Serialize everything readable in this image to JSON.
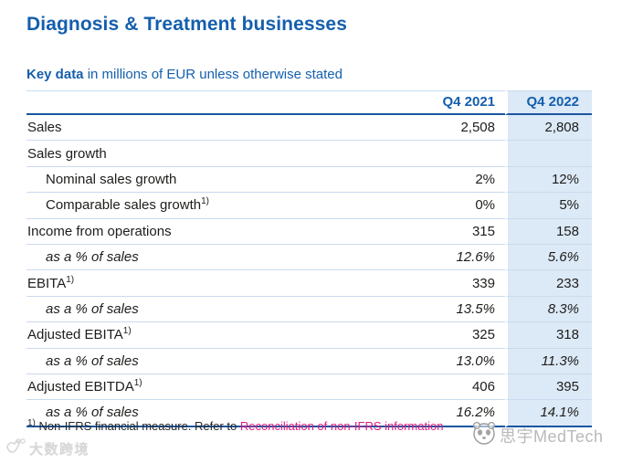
{
  "page": {
    "title": "Diagnosis & Treatment businesses",
    "subtitle_bold": "Key data",
    "subtitle_rest": " in millions of EUR unless otherwise stated"
  },
  "table": {
    "columns": {
      "q4_2021": "Q4 2021",
      "q4_2022": "Q4 2022"
    },
    "rows": [
      {
        "label": "Sales",
        "sup": "",
        "indent": false,
        "italic": false,
        "q4_2021": "2,508",
        "q4_2022": "2,808"
      },
      {
        "label": "Sales growth",
        "sup": "",
        "indent": false,
        "italic": false,
        "q4_2021": "",
        "q4_2022": ""
      },
      {
        "label": "Nominal sales growth",
        "sup": "",
        "indent": true,
        "italic": false,
        "q4_2021": "2%",
        "q4_2022": "12%"
      },
      {
        "label": "Comparable sales growth",
        "sup": "1)",
        "indent": true,
        "italic": false,
        "q4_2021": "0%",
        "q4_2022": "5%"
      },
      {
        "label": "Income from operations",
        "sup": "",
        "indent": false,
        "italic": false,
        "q4_2021": "315",
        "q4_2022": "158"
      },
      {
        "label": "as a % of sales",
        "sup": "",
        "indent": true,
        "italic": true,
        "q4_2021": "12.6%",
        "q4_2022": "5.6%"
      },
      {
        "label": "EBITA",
        "sup": "1)",
        "indent": false,
        "italic": false,
        "q4_2021": "339",
        "q4_2022": "233"
      },
      {
        "label": "as a % of sales",
        "sup": "",
        "indent": true,
        "italic": true,
        "q4_2021": "13.5%",
        "q4_2022": "8.3%"
      },
      {
        "label": "Adjusted EBITA",
        "sup": "1)",
        "indent": false,
        "italic": false,
        "q4_2021": "325",
        "q4_2022": "318"
      },
      {
        "label": "as a % of sales",
        "sup": "",
        "indent": true,
        "italic": true,
        "q4_2021": "13.0%",
        "q4_2022": "11.3%"
      },
      {
        "label": "Adjusted EBITDA",
        "sup": "1)",
        "indent": false,
        "italic": false,
        "q4_2021": "406",
        "q4_2022": "395"
      },
      {
        "label": "as a % of sales",
        "sup": "",
        "indent": true,
        "italic": true,
        "q4_2021": "16.2%",
        "q4_2022": "14.1%"
      }
    ]
  },
  "footnote": {
    "marker": "1)",
    "text": " Non-IFRS financial measure. Refer to ",
    "link_text": "Reconciliation of non-IFRS information"
  },
  "watermarks": {
    "bottom_left": "大数跨境",
    "bottom_right": "思宇MedTech"
  },
  "colors": {
    "brand_blue": "#145fad",
    "rule_blue": "#1a56a0",
    "row_separator": "#c8dbee",
    "highlight_column_bg": "#dce9f6",
    "link_pink": "#e11a7d",
    "body_text": "#1d1d1b",
    "watermark_gray": "#b6b6b6"
  }
}
